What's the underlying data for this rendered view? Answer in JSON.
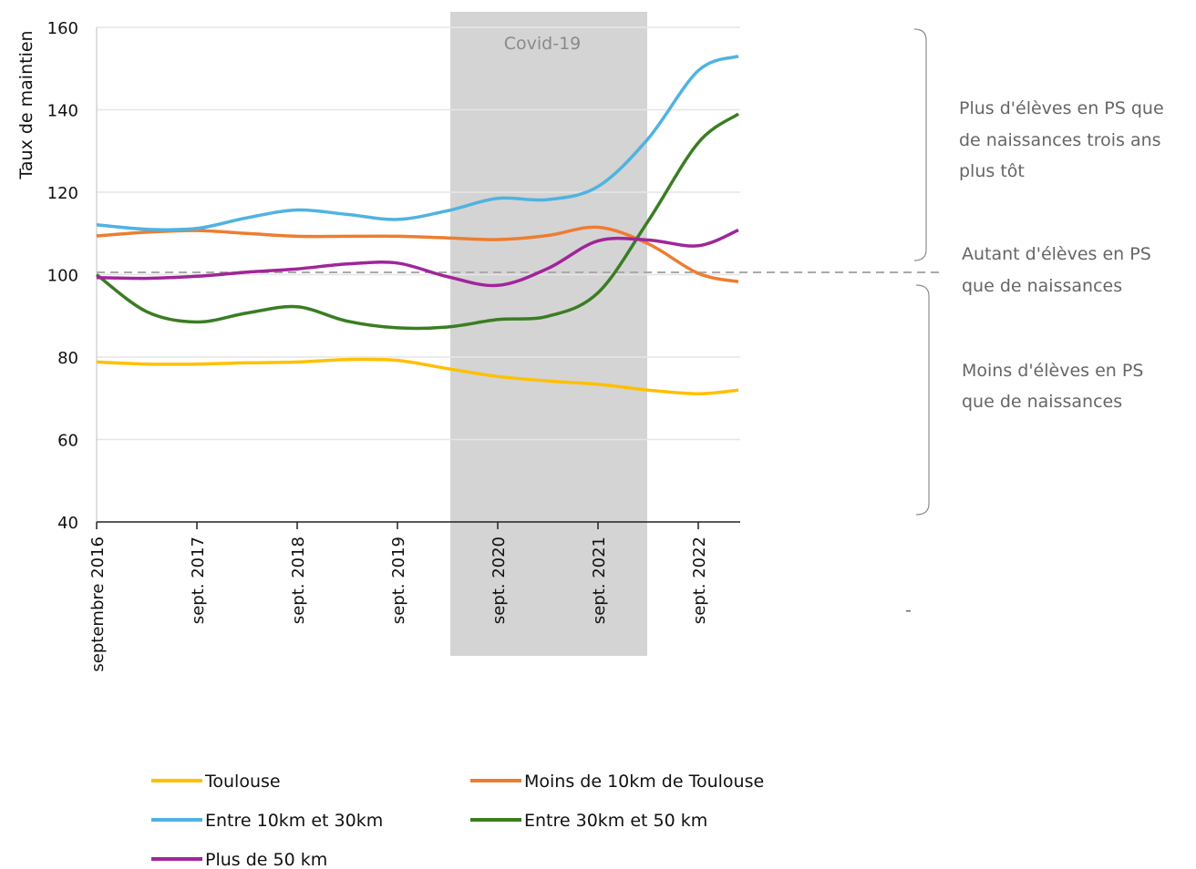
{
  "chart_data": {
    "type": "line",
    "title": "",
    "xlabel": "",
    "ylabel": "Taux de maintien",
    "ylim": [
      40,
      160
    ],
    "yticks": [
      "40",
      "60",
      "80",
      "100",
      "120",
      "140",
      "160"
    ],
    "x_ticks": [
      "septembre 2016",
      "sept. 2017",
      "sept. 2018",
      "sept. 2019",
      "sept. 2020",
      "sept. 2021",
      "sept. 2022"
    ],
    "x": [
      2016,
      2016.5,
      2017,
      2017.5,
      2018,
      2018.5,
      2019,
      2019.5,
      2020,
      2020.5,
      2021,
      2021.5,
      2022,
      2022.4
    ],
    "grid": true,
    "covid_band": {
      "label": "Covid-19",
      "from": 2019.5,
      "to": 2021.5
    },
    "reference_line": {
      "y": 100
    },
    "series": [
      {
        "name": "Toulouse",
        "color": "#FFC000",
        "values": [
          78.8,
          78.3,
          78.3,
          78.6,
          78.8,
          79.4,
          79.2,
          77.2,
          75.3,
          74.2,
          73.4,
          72.0,
          71.1,
          72.0
        ]
      },
      {
        "name": "Moins de 10km de Toulouse",
        "color": "#ED7D31",
        "values": [
          109.4,
          110.3,
          110.7,
          110.0,
          109.3,
          109.3,
          109.3,
          108.9,
          108.5,
          109.5,
          111.5,
          107.5,
          100.3,
          98.3
        ]
      },
      {
        "name": "Entre 10km et 30km",
        "color": "#4FB3E0",
        "values": [
          112.1,
          111.0,
          111.2,
          113.8,
          115.7,
          114.6,
          113.4,
          115.5,
          118.5,
          118.2,
          121.4,
          133.0,
          149.5,
          153.0
        ]
      },
      {
        "name": "Entre 30km et 50 km",
        "color": "#3A7D22",
        "values": [
          100.0,
          91.0,
          88.5,
          90.7,
          92.2,
          88.7,
          87.1,
          87.3,
          89.1,
          89.9,
          95.6,
          113.0,
          132.0,
          139.0
        ]
      },
      {
        "name": "Plus de 50 km",
        "color": "#A0259A",
        "values": [
          99.3,
          99.1,
          99.6,
          100.6,
          101.4,
          102.6,
          102.8,
          99.5,
          97.4,
          101.5,
          108.2,
          108.4,
          107.0,
          110.8
        ]
      }
    ],
    "annotations": [
      "Plus d'élèves en PS que de naissances trois ans plus tôt",
      "Autant d'élèves en PS que de naissances",
      "Moins d'élèves en PS que de naissances"
    ],
    "legend_position": "bottom"
  },
  "annotation_lines": {
    "above": [
      "Plus d'élèves en PS que",
      "de naissances trois ans",
      "plus tôt"
    ],
    "equal": [
      "Autant d'élèves en PS",
      "que de naissances"
    ],
    "below": [
      "Moins d'élèves en PS",
      "que de naissances"
    ]
  },
  "stray_mark": "-",
  "colors": {
    "grid": "#e6e6e6",
    "covid_band": "#d4d4d4",
    "reference": "#aaaaaa",
    "bracket": "#8c8c8c"
  }
}
